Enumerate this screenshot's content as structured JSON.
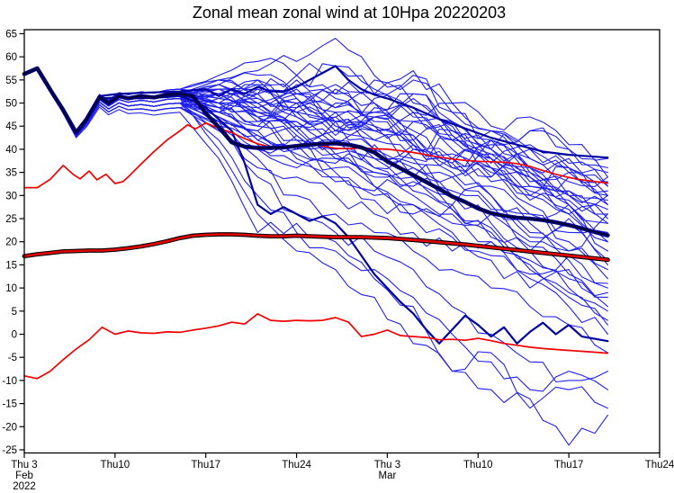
{
  "title": "Zonal mean zonal wind at 10Hpa 20220203",
  "chart_data": {
    "type": "line",
    "title": "Zonal mean zonal wind at 10Hpa 20220203",
    "xlabel": "",
    "ylabel": "",
    "grid": false,
    "legend": "none",
    "x_unit": "days since start date shown on axis",
    "xlim_days": [
      0,
      49
    ],
    "ylim": [
      -26.5,
      66
    ],
    "y_ticks": [
      65,
      60,
      55,
      50,
      45,
      40,
      35,
      30,
      25,
      20,
      15,
      10,
      5,
      0,
      -5,
      -10,
      -15,
      -20,
      -25
    ],
    "x_ticks": [
      {
        "day": 0,
        "label": "Thu 3",
        "sub": [
          "Feb",
          "2022"
        ]
      },
      {
        "day": 7,
        "label": "Thu10",
        "sub": []
      },
      {
        "day": 14,
        "label": "Thu17",
        "sub": []
      },
      {
        "day": 21,
        "label": "Thu24",
        "sub": []
      },
      {
        "day": 28,
        "label": "Thu 3",
        "sub": [
          "Mar"
        ]
      },
      {
        "day": 35,
        "label": "Thu10",
        "sub": []
      },
      {
        "day": 42,
        "label": "Thu17",
        "sub": []
      },
      {
        "day": 49,
        "label": "Thu24",
        "sub": []
      }
    ],
    "colors": {
      "member_blue": "#2020ee",
      "control_navy": "#0000a0",
      "mean_navy": "#000080",
      "mean_core": "#000028",
      "clim_red": "#e60000",
      "clim_edge": "#000000",
      "thin_red": "#f40000",
      "axis": "#000000"
    },
    "series": {
      "ensemble_mean": {
        "name": "ensemble mean",
        "days": [
          0,
          1,
          2.2,
          3,
          4,
          4.8,
          5.8,
          6.5,
          7.3,
          8,
          9,
          10,
          11,
          12,
          13,
          14,
          15,
          16,
          17,
          18,
          19,
          20,
          21,
          22,
          23,
          24,
          25,
          26,
          27,
          28,
          29,
          30,
          31,
          32,
          33,
          34,
          35,
          36,
          37,
          38,
          39,
          40,
          41,
          42,
          43,
          44,
          45
        ],
        "values": [
          56.3,
          57.5,
          52,
          48.5,
          43.6,
          46.5,
          51.3,
          50,
          51.5,
          51,
          51.5,
          51.2,
          51.8,
          52,
          51.5,
          47.8,
          44.8,
          41.5,
          40.6,
          40.3,
          40.3,
          40.4,
          40.7,
          41,
          41.2,
          41.3,
          41,
          40.4,
          39.3,
          37.4,
          35.9,
          34.4,
          32.9,
          31.4,
          29.8,
          28.6,
          27.2,
          26.2,
          25.6,
          25.2,
          25,
          24.7,
          24.2,
          23.6,
          22.9,
          22.1,
          21.4
        ]
      },
      "control_a": {
        "name": "control / high forecast",
        "days": [
          0,
          1,
          2.2,
          4,
          4.8,
          5.8,
          7.3,
          9,
          11,
          12,
          13,
          14,
          15,
          16,
          17,
          18,
          19,
          20,
          21,
          22,
          23,
          24,
          25,
          26,
          27,
          28,
          30,
          32,
          34,
          36,
          38,
          40,
          42,
          44,
          45
        ],
        "values": [
          56.3,
          57.5,
          52,
          43.5,
          46.6,
          51.5,
          52,
          52.2,
          52.4,
          52.5,
          52.8,
          53,
          51.5,
          53,
          52,
          53.5,
          52.5,
          52.5,
          53.5,
          55,
          56.5,
          58,
          55,
          53,
          51.8,
          51,
          49,
          46.5,
          44.5,
          42.5,
          41,
          39.5,
          38.8,
          38.4,
          38.2
        ]
      },
      "control_b": {
        "name": "control / low forecast",
        "days": [
          0,
          1,
          2.2,
          4,
          4.8,
          5.8,
          7.3,
          9,
          11,
          12,
          13,
          14,
          15,
          16,
          17,
          18,
          19,
          20,
          21,
          22,
          23,
          24,
          25,
          26,
          27,
          28,
          29,
          30,
          31,
          32,
          33,
          34,
          35,
          36,
          37,
          38,
          39,
          40,
          41,
          42,
          43,
          44,
          45
        ],
        "values": [
          56.3,
          57.5,
          52,
          43.8,
          46.4,
          51,
          51.2,
          51,
          51.3,
          51.5,
          50.5,
          49,
          46.5,
          44,
          37,
          28,
          26,
          27.5,
          26,
          24.5,
          25.5,
          24,
          21,
          17,
          13,
          10,
          7,
          4.5,
          1,
          -2,
          1,
          4,
          2,
          -0.5,
          1.5,
          -2,
          0.5,
          2.5,
          0,
          2,
          -0.5,
          -1,
          -1.5
        ]
      },
      "climatology_mean": {
        "name": "climatological mean",
        "days": [
          0,
          1,
          2,
          3,
          4,
          5,
          6,
          7,
          8,
          9,
          10,
          11,
          12,
          13,
          14,
          15,
          16,
          17,
          18,
          19,
          20,
          21,
          22,
          23,
          24,
          26,
          28,
          30,
          32,
          34,
          36,
          38,
          40,
          42,
          44,
          45
        ],
        "values": [
          16.9,
          17.3,
          17.6,
          17.9,
          18,
          18.1,
          18.1,
          18.3,
          18.6,
          19,
          19.5,
          20.1,
          20.8,
          21.3,
          21.5,
          21.6,
          21.6,
          21.5,
          21.3,
          21.2,
          21.2,
          21.3,
          21.2,
          21.1,
          21,
          21,
          20.8,
          20.4,
          19.9,
          19.4,
          18.8,
          18.2,
          17.6,
          17,
          16.4,
          16.1
        ]
      },
      "climatology_upper": {
        "name": "climatology upper bound",
        "days": [
          0,
          1,
          2,
          3,
          3.8,
          4.3,
          5,
          5.6,
          6.3,
          7,
          7.6,
          8,
          9,
          10,
          11,
          12,
          12.6,
          13.2,
          14,
          15,
          16,
          17,
          18,
          19,
          20,
          21,
          22,
          23,
          24,
          25,
          26,
          27,
          28,
          29,
          30,
          31,
          32,
          33,
          34,
          35,
          36,
          37,
          38,
          39,
          40,
          41,
          42,
          43,
          44,
          45
        ],
        "values": [
          31.7,
          31.7,
          33.5,
          36.5,
          34.5,
          33.6,
          35.3,
          33.4,
          34.6,
          32.6,
          33,
          34,
          36.8,
          39.5,
          42,
          44,
          45.3,
          44.4,
          45.7,
          44.5,
          43.6,
          42.3,
          41.2,
          40.5,
          40.3,
          40.6,
          41.2,
          40.7,
          40.2,
          40.1,
          40.3,
          40.1,
          40,
          39.7,
          39.3,
          38.8,
          38.3,
          37.9,
          37.6,
          37.4,
          37.3,
          37.2,
          36.9,
          36.3,
          35.4,
          34.6,
          33.9,
          33.4,
          33,
          32.7
        ]
      },
      "climatology_lower": {
        "name": "climatology lower bound",
        "days": [
          0,
          1,
          2,
          3,
          4,
          5,
          6,
          7,
          8,
          9,
          10,
          11,
          12,
          13,
          14,
          15,
          16,
          17,
          18,
          19,
          20,
          21,
          22,
          23,
          24,
          25,
          26,
          27,
          28,
          29,
          30,
          31,
          32,
          33,
          34,
          35,
          36,
          37,
          38,
          39,
          40,
          41,
          42,
          43,
          44,
          45
        ],
        "values": [
          -9,
          -9.6,
          -8,
          -5.5,
          -3.2,
          -1.2,
          1.5,
          0,
          0.7,
          0.3,
          0.2,
          0.5,
          0.4,
          0.9,
          1.3,
          1.8,
          2.6,
          2.2,
          4.4,
          3,
          2.8,
          3,
          2.9,
          3,
          3.6,
          2.6,
          -0.5,
          0,
          0.9,
          -0.3,
          -0.5,
          -0.7,
          -1.2,
          -1.1,
          -1.3,
          -0.9,
          -1.4,
          -2,
          -2.4,
          -2.8,
          -3.1,
          -3.3,
          -3.5,
          -3.7,
          -3.9,
          -4.1
        ]
      },
      "member_common_prefix": {
        "days": [
          0,
          1,
          2.2,
          3,
          4,
          4.8,
          5.8,
          6.5,
          7.3,
          8,
          9,
          10,
          11,
          12
        ],
        "values": [
          56.3,
          57.5,
          52,
          48.5,
          43.6,
          46.5,
          51.3,
          50,
          51.5,
          51,
          51.5,
          51.2,
          51.8,
          52
        ],
        "spread": [
          0,
          0,
          0.2,
          0.4,
          0.6,
          0.9,
          1.2,
          1.4,
          1.6,
          1.8,
          2,
          2.1,
          2.2,
          2.2
        ]
      },
      "member_days": [
        12,
        15,
        18,
        21,
        24,
        27,
        30,
        33,
        36,
        39,
        42,
        45
      ],
      "member_wiggle_amp": 2.0,
      "members": [
        [
          52,
          55,
          57,
          59,
          64,
          56,
          50,
          44,
          40,
          36,
          33,
          34
        ],
        [
          53,
          56,
          59,
          56,
          52,
          55,
          57,
          50,
          45,
          47,
          41,
          38
        ],
        [
          51,
          54,
          52,
          56,
          58,
          53,
          48,
          50,
          44,
          38,
          35,
          30
        ],
        [
          52,
          53,
          55,
          52,
          49,
          52,
          55,
          48,
          42,
          36,
          38,
          32
        ],
        [
          50,
          52,
          48,
          50,
          53,
          50,
          46,
          42,
          44,
          38,
          30,
          26
        ],
        [
          53,
          55,
          53,
          49,
          46,
          49,
          52,
          46,
          40,
          34,
          28,
          22
        ],
        [
          51,
          49,
          51,
          47,
          44,
          47,
          43,
          38,
          34,
          36,
          30,
          24
        ],
        [
          52,
          50,
          46,
          44,
          47,
          44,
          40,
          36,
          38,
          32,
          26,
          20
        ],
        [
          50,
          48,
          44,
          46,
          42,
          38,
          41,
          35,
          30,
          26,
          28,
          18
        ],
        [
          52,
          54,
          50,
          45,
          41,
          44,
          38,
          34,
          36,
          28,
          22,
          16
        ],
        [
          51,
          47,
          43,
          40,
          42,
          36,
          32,
          34,
          28,
          22,
          18,
          14
        ],
        [
          53,
          51,
          47,
          42,
          38,
          34,
          36,
          30,
          26,
          20,
          16,
          10
        ],
        [
          50,
          46,
          40,
          36,
          38,
          32,
          28,
          24,
          26,
          18,
          12,
          8
        ],
        [
          52,
          48,
          42,
          38,
          34,
          30,
          26,
          28,
          22,
          16,
          10,
          5
        ],
        [
          51,
          45,
          38,
          34,
          30,
          26,
          22,
          18,
          20,
          12,
          6,
          0
        ],
        [
          49,
          44,
          36,
          30,
          26,
          22,
          18,
          14,
          10,
          6,
          2,
          -4
        ],
        [
          52,
          46,
          34,
          26,
          22,
          18,
          14,
          6,
          0,
          -6,
          -10,
          -8
        ],
        [
          50,
          42,
          30,
          22,
          18,
          14,
          8,
          0,
          -6,
          -12,
          -8,
          -12
        ],
        [
          51,
          40,
          26,
          18,
          14,
          8,
          -2,
          -8,
          -12,
          -16,
          -12,
          -16
        ],
        [
          48,
          38,
          22,
          24,
          20,
          12,
          6,
          -8,
          -4,
          -14,
          -24,
          -17.5
        ],
        [
          52,
          50,
          53,
          48,
          44,
          40,
          36,
          30,
          24,
          18,
          24,
          20
        ],
        [
          50,
          53,
          49,
          44,
          40,
          36,
          40,
          44,
          38,
          30,
          34,
          28
        ],
        [
          51,
          52,
          48,
          52,
          46,
          42,
          46,
          40,
          34,
          40,
          36,
          30
        ],
        [
          53,
          49,
          45,
          48,
          44,
          48,
          42,
          36,
          42,
          34,
          28,
          24
        ],
        [
          49,
          51,
          47,
          42,
          46,
          40,
          34,
          28,
          32,
          26,
          20,
          12
        ],
        [
          52,
          54,
          56,
          52,
          48,
          44,
          48,
          42,
          36,
          30,
          26,
          30
        ],
        [
          50,
          47,
          44,
          40,
          36,
          32,
          28,
          22,
          16,
          10,
          14,
          6
        ],
        [
          51,
          48,
          50,
          46,
          42,
          38,
          34,
          38,
          30,
          24,
          18,
          26
        ],
        [
          52,
          51,
          54,
          50,
          54,
          50,
          44,
          38,
          42,
          44,
          40,
          36
        ],
        [
          50,
          49,
          45,
          41,
          37,
          41,
          37,
          31,
          27,
          21,
          25,
          15
        ],
        [
          51,
          53,
          50,
          54,
          58,
          52,
          56,
          48,
          44,
          40,
          36,
          32
        ],
        [
          52,
          50,
          47,
          43,
          39,
          35,
          30,
          26,
          20,
          14,
          8,
          2
        ],
        [
          49,
          46,
          42,
          45,
          48,
          45,
          41,
          37,
          33,
          29,
          31,
          27
        ],
        [
          53,
          52,
          55,
          51,
          47,
          51,
          47,
          43,
          39,
          35,
          29,
          25
        ],
        [
          50,
          44,
          40,
          43,
          39,
          35,
          31,
          27,
          23,
          19,
          13,
          9
        ],
        [
          52,
          49,
          46,
          49,
          52,
          48,
          52,
          46,
          40,
          44,
          40,
          34
        ],
        [
          51,
          50,
          48,
          51,
          45,
          47,
          43,
          39,
          35,
          31,
          27,
          21
        ],
        [
          52,
          55,
          52,
          48,
          50,
          46,
          42,
          46,
          38,
          34,
          30,
          28
        ],
        [
          50,
          48,
          52,
          55,
          51,
          47,
          51,
          45,
          39,
          33,
          35,
          31
        ],
        [
          53,
          50,
          54,
          50,
          46,
          42,
          38,
          42,
          36,
          32,
          36,
          33
        ],
        [
          49,
          45,
          41,
          37,
          33,
          29,
          25,
          21,
          17,
          13,
          17,
          11
        ],
        [
          52,
          53,
          51,
          47,
          43,
          47,
          49,
          43,
          37,
          41,
          37,
          35
        ],
        [
          50,
          46,
          43,
          39,
          35,
          31,
          33,
          27,
          21,
          15,
          9,
          3
        ],
        [
          51,
          52,
          49,
          53,
          49,
          45,
          41,
          37,
          41,
          35,
          31,
          29
        ]
      ]
    }
  }
}
